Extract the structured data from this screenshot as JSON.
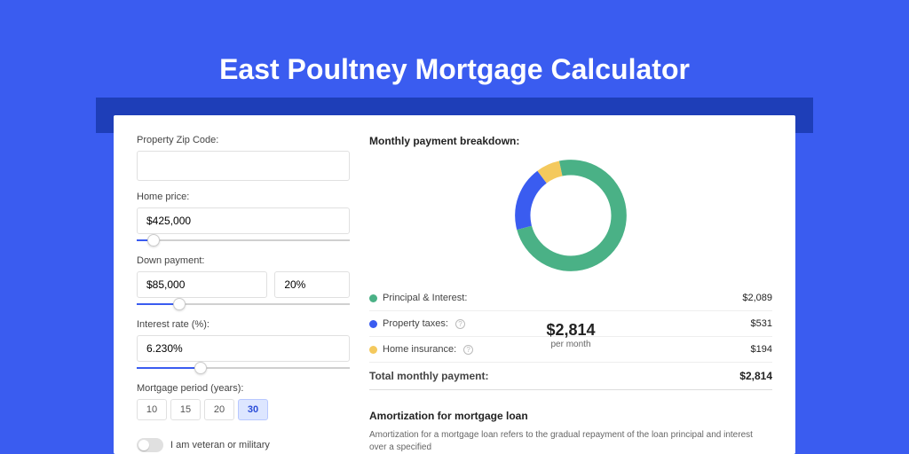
{
  "page_title": "East Poultney Mortgage Calculator",
  "colors": {
    "page_bg": "#3a5cf0",
    "strip_bg": "#1e3eb8",
    "panel_bg": "#ffffff",
    "principal": "#4ab186",
    "taxes": "#3a5cf0",
    "insurance": "#f4c95d"
  },
  "form": {
    "zip_label": "Property Zip Code:",
    "zip_value": "",
    "price_label": "Home price:",
    "price_value": "$425,000",
    "down_label": "Down payment:",
    "down_value": "$85,000",
    "down_pct": "20%",
    "rate_label": "Interest rate (%):",
    "rate_value": "6.230%",
    "period_label": "Mortgage period (years):",
    "periods": [
      "10",
      "15",
      "20",
      "30"
    ],
    "period_active_index": 3,
    "veteran_label": "I am veteran or military",
    "price_slider_pct": 8,
    "down_slider_pct": 20,
    "rate_slider_pct": 30
  },
  "summary": {
    "title": "Monthly payment breakdown:",
    "center_amount": "$2,814",
    "center_sub": "per month",
    "rows": [
      {
        "label": "Principal & Interest:",
        "value": "$2,089",
        "color": "#4ab186",
        "help": false
      },
      {
        "label": "Property taxes:",
        "value": "$531",
        "color": "#3a5cf0",
        "help": true
      },
      {
        "label": "Home insurance:",
        "value": "$194",
        "color": "#f4c95d",
        "help": true
      }
    ],
    "total_label": "Total monthly payment:",
    "total_value": "$2,814",
    "donut": {
      "circumference": 100,
      "segments": [
        {
          "name": "principal",
          "color": "#4ab186",
          "fraction": 0.742
        },
        {
          "name": "taxes",
          "color": "#3a5cf0",
          "fraction": 0.189
        },
        {
          "name": "insurance",
          "color": "#f4c95d",
          "fraction": 0.069
        }
      ],
      "stroke_width": 16,
      "radius": 50
    }
  },
  "amort": {
    "title": "Amortization for mortgage loan",
    "text": "Amortization for a mortgage loan refers to the gradual repayment of the loan principal and interest over a specified"
  }
}
